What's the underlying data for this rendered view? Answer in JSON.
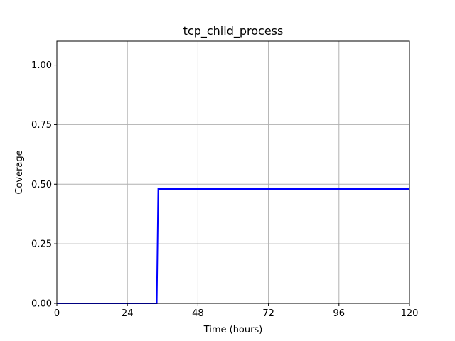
{
  "chart_data": {
    "type": "line",
    "title": "tcp_child_process",
    "xlabel": "Time (hours)",
    "ylabel": "Coverage",
    "xlim": [
      0,
      120
    ],
    "ylim": [
      0,
      1.1
    ],
    "x_ticks": [
      0,
      24,
      48,
      72,
      96,
      120
    ],
    "x_tick_labels": [
      "0",
      "24",
      "48",
      "72",
      "96",
      "120"
    ],
    "y_ticks": [
      0,
      0.25,
      0.5,
      0.75,
      1.0
    ],
    "y_tick_labels": [
      "0.00",
      "0.25",
      "0.50",
      "0.75",
      "1.00"
    ],
    "grid": true,
    "series": [
      {
        "color": "#0000ff",
        "x": [
          0,
          34,
          34.5,
          120
        ],
        "y": [
          0,
          0,
          0.48,
          0.48
        ]
      }
    ]
  }
}
